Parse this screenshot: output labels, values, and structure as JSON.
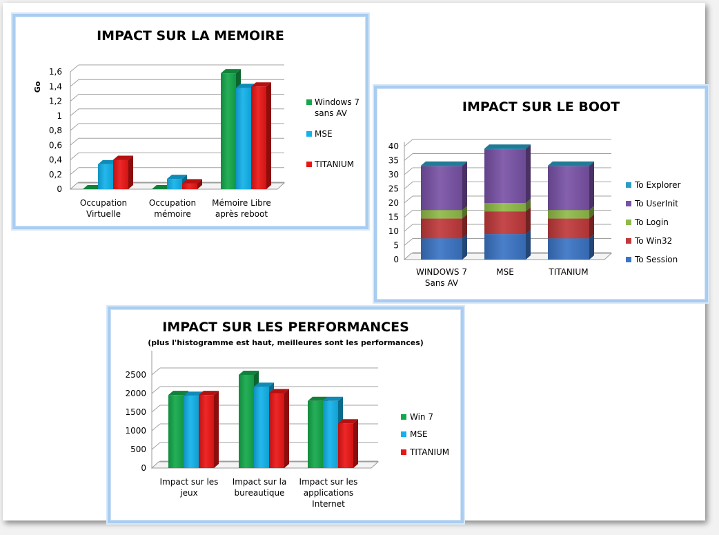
{
  "chart_data": [
    {
      "type": "bar",
      "title": "IMPACT SUR LA MEMOIRE",
      "ylabel": "Go",
      "ylim": [
        0,
        1.6
      ],
      "yticks": [
        "0",
        "0,2",
        "0,4",
        "0,6",
        "0,8",
        "1",
        "1,2",
        "1,4",
        "1,6"
      ],
      "categories": [
        [
          "Occupation",
          "Virtuelle"
        ],
        [
          "Occupation",
          "mémoire"
        ],
        [
          "Mémoire Libre",
          "après reboot"
        ]
      ],
      "series": [
        {
          "name": "Windows 7 sans AV",
          "legend": [
            "Windows 7",
            "sans AV"
          ],
          "color": "#13a84a",
          "values": [
            0,
            0,
            1.58
          ]
        },
        {
          "name": "MSE",
          "legend": [
            "MSE"
          ],
          "color": "#12b2ea",
          "values": [
            0.34,
            0.14,
            1.38
          ]
        },
        {
          "name": "TITANIUM",
          "legend": [
            "TITANIUM"
          ],
          "color": "#ea1515",
          "values": [
            0.4,
            0.08,
            1.4
          ]
        }
      ]
    },
    {
      "type": "stacked-bar",
      "title": "IMPACT SUR LE BOOT",
      "ylim": [
        0,
        40
      ],
      "yticks": [
        "0",
        "5",
        "10",
        "15",
        "20",
        "25",
        "30",
        "35",
        "40"
      ],
      "categories": [
        [
          "WINDOWS 7",
          "Sans AV"
        ],
        [
          "MSE"
        ],
        [
          "TITANIUM"
        ]
      ],
      "series": [
        {
          "name": "To Session",
          "color": "#3a74c4",
          "values": [
            7.5,
            9,
            7.5
          ]
        },
        {
          "name": "To Win32",
          "color": "#c0393b",
          "values": [
            7,
            8,
            7
          ]
        },
        {
          "name": "To Login",
          "color": "#8fba47",
          "values": [
            3,
            3,
            3
          ]
        },
        {
          "name": "To UserInit",
          "color": "#7952a6",
          "values": [
            15.5,
            19,
            15.5
          ]
        },
        {
          "name": "To Explorer",
          "color": "#2a9ec0",
          "values": [
            0.2,
            0.2,
            0.2
          ]
        }
      ],
      "legend_order": [
        "To Explorer",
        "To UserInit",
        "To Login",
        "To Win32",
        "To Session"
      ]
    },
    {
      "type": "bar",
      "title": "IMPACT SUR LES PERFORMANCES",
      "subtitle": "(plus l'histogramme est haut, meilleures sont les performances)",
      "ylim": [
        0,
        2500
      ],
      "yticks": [
        "0",
        "500",
        "1000",
        "1500",
        "2000",
        "2500"
      ],
      "categories": [
        [
          "Impact sur les",
          "jeux"
        ],
        [
          "Impact sur la",
          "bureautique"
        ],
        [
          "Impact sur les",
          "applications",
          "Internet"
        ]
      ],
      "series": [
        {
          "name": "Win 7",
          "legend": [
            "Win 7"
          ],
          "color": "#13a84a",
          "values": [
            1960,
            2500,
            1800
          ]
        },
        {
          "name": "MSE",
          "legend": [
            "MSE"
          ],
          "color": "#12b2ea",
          "values": [
            1940,
            2180,
            1800
          ]
        },
        {
          "name": "TITANIUM",
          "legend": [
            "TITANIUM"
          ],
          "color": "#ea1515",
          "values": [
            1960,
            2010,
            1200
          ]
        }
      ]
    }
  ]
}
